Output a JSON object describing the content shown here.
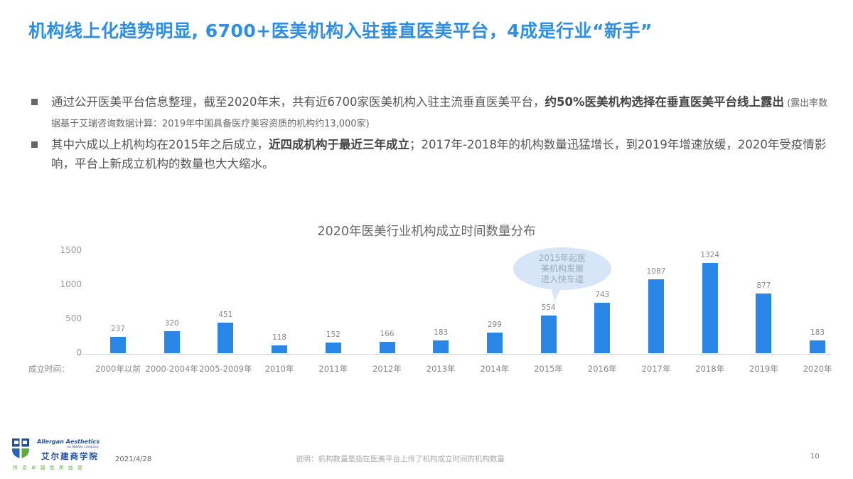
{
  "slide": {
    "title": "机构线上化趋势明显, 6700+医美机构入驻垂直医美平台，4成是行业“新手”",
    "bullets": [
      {
        "text_plain": "通过公开医美平台信息整理，截至2020年末，共有近6700家医美机构入驻主流垂直医美平台，",
        "text_bold": "约50%医美机构选择在垂直医美平台线上露出",
        "text_note": " (露出率数据基于艾瑞咨询数据计算：2019年中国具备医疗美容资质的机构约13,000家)"
      },
      {
        "text_plain": "其中六成以上机构均在2015年之后成立，",
        "text_bold": "近四成机构于最近三年成立",
        "text_after": "；2017年-2018年的机构数量迅猛增长，到2019年增速放缓，2020年受疫情影响，平台上新成立机构的数量也大大缩水。"
      }
    ]
  },
  "chart_data": {
    "type": "bar",
    "title": "2020年医美行业机构成立时间数量分布",
    "xlabel": "成立时间：",
    "ylabel": "",
    "ylim": [
      0,
      1500
    ],
    "yticks": [
      0,
      500,
      1000,
      1500
    ],
    "grid": false,
    "legend": null,
    "bar_color": "#2a87e8",
    "categories": [
      "2000年以前",
      "2000-2004年",
      "2005-2009年",
      "2010年",
      "2011年",
      "2012年",
      "2013年",
      "2014年",
      "2015年",
      "2016年",
      "2017年",
      "2018年",
      "2019年",
      "2020年"
    ],
    "values": [
      237,
      320,
      451,
      118,
      152,
      166,
      183,
      299,
      554,
      743,
      1087,
      1324,
      877,
      183
    ],
    "annotations": [
      {
        "text": "2015年起医美机构发展进入快车道",
        "lines": [
          "2015年起医",
          "美机构发展",
          "进入快车道"
        ],
        "target": "2015年",
        "style": "speech-bubble"
      }
    ]
  },
  "footer": {
    "logo": {
      "en": "Allergan Aesthetics",
      "en_sub": "an AbbVie company",
      "cn": "艾尔建商学院",
      "slogan": "缔造卓越医美经营"
    },
    "date": "2021/4/28",
    "note": "说明：机构数量是指在医美平台上传了机构成立时间的机构数量",
    "page": "10"
  }
}
